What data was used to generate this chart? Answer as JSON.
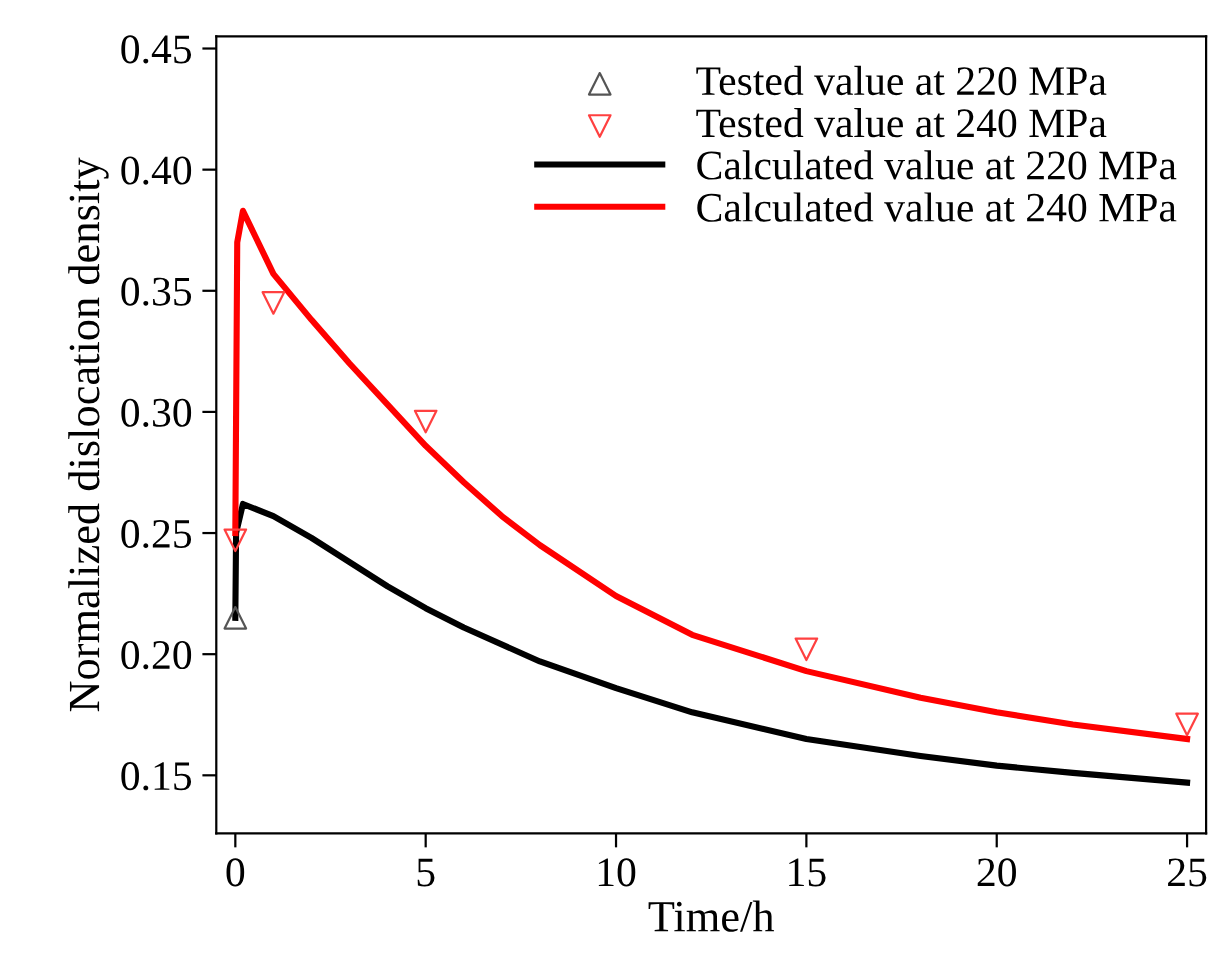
{
  "chart_data": {
    "type": "line",
    "xlabel": "Time/h",
    "ylabel": "Normalized dislocation density",
    "xlim": [
      -0.5,
      25.5
    ],
    "ylim": [
      0.126,
      0.455
    ],
    "xticks": [
      0,
      5,
      10,
      15,
      20,
      25
    ],
    "yticks": [
      {
        "value": 0.15,
        "label": "0.15"
      },
      {
        "value": 0.2,
        "label": "0.20"
      },
      {
        "value": 0.25,
        "label": "0.25"
      },
      {
        "value": 0.3,
        "label": "0.30"
      },
      {
        "value": 0.35,
        "label": "0.35"
      },
      {
        "value": 0.4,
        "label": "0.40"
      },
      {
        "value": 0.45,
        "label": "0.45"
      }
    ],
    "grid": false,
    "legend": "top right",
    "series": [
      {
        "name": "Tested value at 220 MPa",
        "type": "scatter",
        "marker": "triangle",
        "color": "#555555",
        "x": [
          0
        ],
        "values": [
          0.215
        ]
      },
      {
        "name": "Tested value at 240 MPa",
        "type": "scatter",
        "marker": "triangle_down",
        "color": "#ff4040",
        "x": [
          0,
          1,
          5,
          15,
          25
        ],
        "values": [
          0.247,
          0.345,
          0.296,
          0.202,
          0.171
        ]
      },
      {
        "name": "Calculated value at 220 MPa",
        "color": "#000000",
        "x": [
          0,
          0.02,
          0.2,
          1,
          2,
          3,
          4,
          5,
          6,
          8,
          10,
          12,
          15,
          18,
          20,
          22,
          25
        ],
        "values": [
          0.215,
          0.25,
          0.262,
          0.257,
          0.248,
          0.238,
          0.228,
          0.219,
          0.211,
          0.197,
          0.186,
          0.176,
          0.165,
          0.158,
          0.154,
          0.151,
          0.147
        ]
      },
      {
        "name": "Calculated value at 240 MPa",
        "color": "#ff0000",
        "x": [
          0,
          0.05,
          0.2,
          1,
          2,
          3,
          4,
          5,
          6,
          7,
          8,
          10,
          12,
          15,
          18,
          20,
          22,
          25
        ],
        "values": [
          0.25,
          0.37,
          0.383,
          0.357,
          0.338,
          0.32,
          0.303,
          0.286,
          0.271,
          0.257,
          0.245,
          0.224,
          0.208,
          0.193,
          0.182,
          0.176,
          0.171,
          0.165
        ]
      }
    ]
  }
}
